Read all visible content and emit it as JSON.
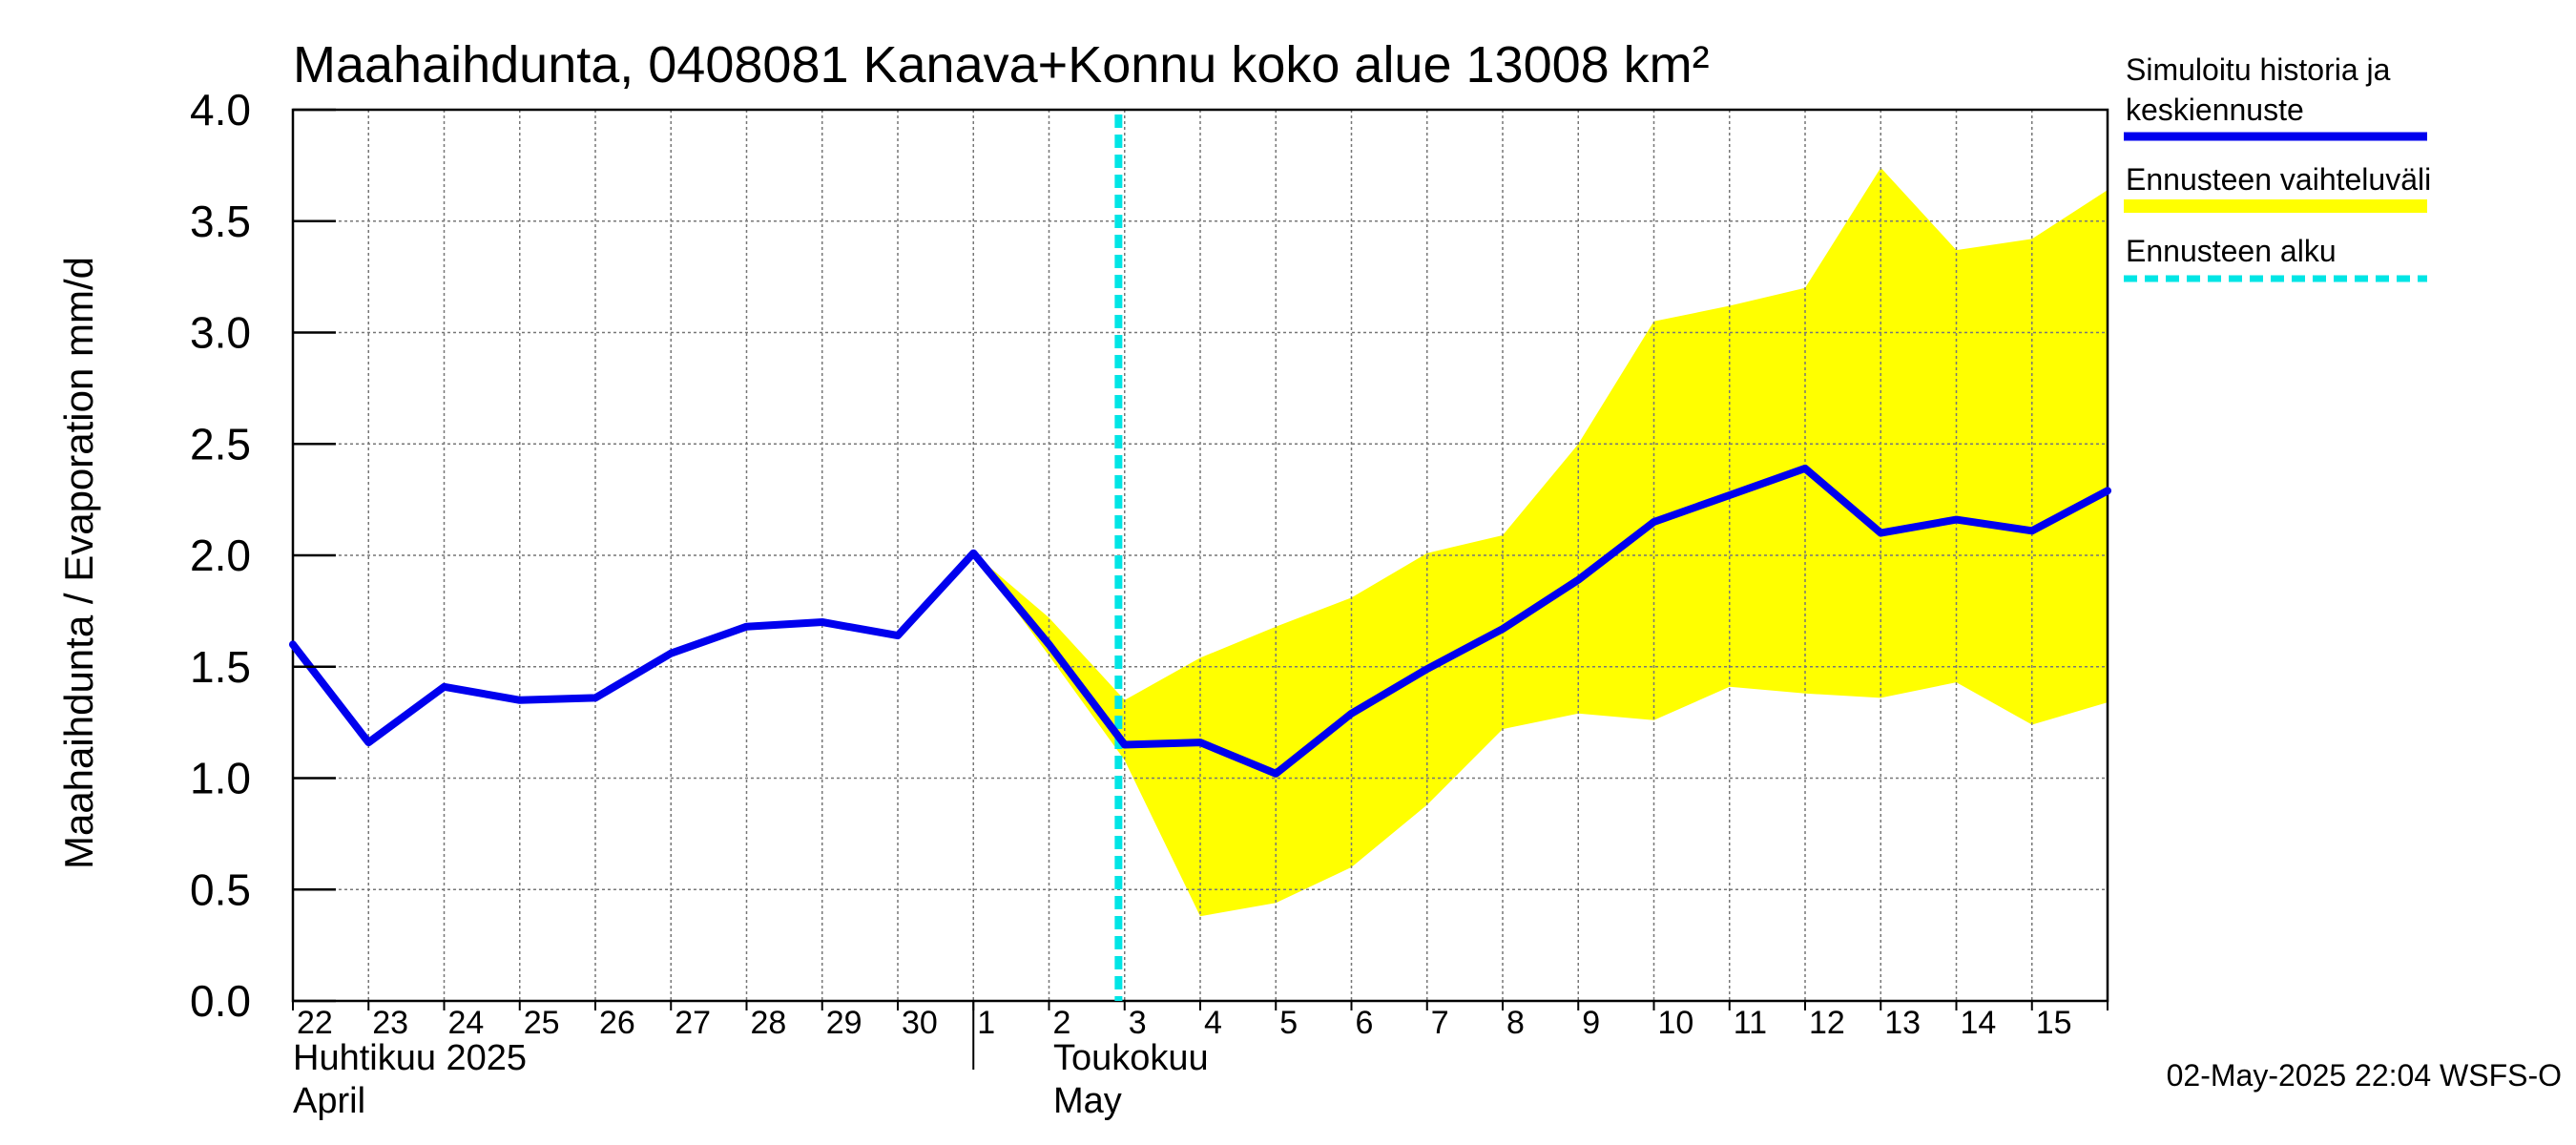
{
  "chart_data": {
    "type": "line",
    "title": "Maahaihdunta, 0408081 Kanava+Konnu koko alue 13008 km²",
    "ylabel": "Maahaihdunta / Evaporation   mm/d",
    "ylim": [
      0,
      4
    ],
    "yticks": [
      "0.0",
      "0.5",
      "1.0",
      "1.5",
      "2.0",
      "2.5",
      "3.0",
      "3.5",
      "4.0"
    ],
    "xlim": [
      "2025-04-22",
      "2025-05-16"
    ],
    "xtick_labels": [
      {
        "date": "2025-04-22",
        "label": "22"
      },
      {
        "date": "2025-04-23",
        "label": "23"
      },
      {
        "date": "2025-04-24",
        "label": "24"
      },
      {
        "date": "2025-04-25",
        "label": "25"
      },
      {
        "date": "2025-04-26",
        "label": "26"
      },
      {
        "date": "2025-04-27",
        "label": "27"
      },
      {
        "date": "2025-04-28",
        "label": "28"
      },
      {
        "date": "2025-04-29",
        "label": "29"
      },
      {
        "date": "2025-04-30",
        "label": "30"
      },
      {
        "date": "2025-05-01",
        "label": "1"
      },
      {
        "date": "2025-05-02",
        "label": "2"
      },
      {
        "date": "2025-05-03",
        "label": "3"
      },
      {
        "date": "2025-05-04",
        "label": "4"
      },
      {
        "date": "2025-05-05",
        "label": "5"
      },
      {
        "date": "2025-05-06",
        "label": "6"
      },
      {
        "date": "2025-05-07",
        "label": "7"
      },
      {
        "date": "2025-05-08",
        "label": "8"
      },
      {
        "date": "2025-05-09",
        "label": "9"
      },
      {
        "date": "2025-05-10",
        "label": "10"
      },
      {
        "date": "2025-05-11",
        "label": "11"
      },
      {
        "date": "2025-05-12",
        "label": "12"
      },
      {
        "date": "2025-05-13",
        "label": "13"
      },
      {
        "date": "2025-05-14",
        "label": "14"
      },
      {
        "date": "2025-05-15",
        "label": "15"
      }
    ],
    "month_labels": [
      {
        "line1": "Huhtikuu  2025",
        "line2": "April"
      },
      {
        "line1": "Toukokuu",
        "line2": "May"
      }
    ],
    "grid": true,
    "legend_position": "right",
    "series": [
      {
        "name": "Simuloitu historia ja keskiennuste",
        "color": "#0000ee",
        "x": [
          "2025-04-22",
          "2025-04-23",
          "2025-04-24",
          "2025-04-25",
          "2025-04-26",
          "2025-04-27",
          "2025-04-28",
          "2025-04-29",
          "2025-04-30",
          "2025-05-01",
          "2025-05-02",
          "2025-05-03",
          "2025-05-04",
          "2025-05-05",
          "2025-05-06",
          "2025-05-07",
          "2025-05-08",
          "2025-05-09",
          "2025-05-10",
          "2025-05-11",
          "2025-05-12",
          "2025-05-13",
          "2025-05-14",
          "2025-05-15",
          "2025-05-16"
        ],
        "y": [
          1.6,
          1.16,
          1.41,
          1.35,
          1.36,
          1.56,
          1.68,
          1.7,
          1.64,
          2.01,
          1.6,
          1.15,
          1.16,
          1.02,
          1.29,
          1.49,
          1.67,
          1.89,
          2.15,
          2.27,
          2.39,
          2.1,
          2.16,
          2.11,
          2.29
        ]
      },
      {
        "name": "Ennusteen vaihteluväli",
        "color": "#ffff00",
        "x": [
          "2025-05-01",
          "2025-05-02",
          "2025-05-03",
          "2025-05-04",
          "2025-05-05",
          "2025-05-06",
          "2025-05-07",
          "2025-05-08",
          "2025-05-09",
          "2025-05-10",
          "2025-05-11",
          "2025-05-12",
          "2025-05-13",
          "2025-05-14",
          "2025-05-15",
          "2025-05-16"
        ],
        "upper": [
          2.01,
          1.72,
          1.35,
          1.54,
          1.68,
          1.81,
          2.01,
          2.09,
          2.5,
          3.05,
          3.12,
          3.2,
          3.74,
          3.37,
          3.42,
          3.64
        ],
        "lower": [
          2.01,
          1.55,
          1.08,
          0.38,
          0.44,
          0.6,
          0.88,
          1.22,
          1.29,
          1.26,
          1.41,
          1.38,
          1.36,
          1.43,
          1.24,
          1.34
        ]
      },
      {
        "name": "Ennusteen alku",
        "color": "#00e5e5",
        "x": "2025-05-02T22:04"
      }
    ]
  },
  "footer": "02-May-2025 22:04 WSFS-O"
}
